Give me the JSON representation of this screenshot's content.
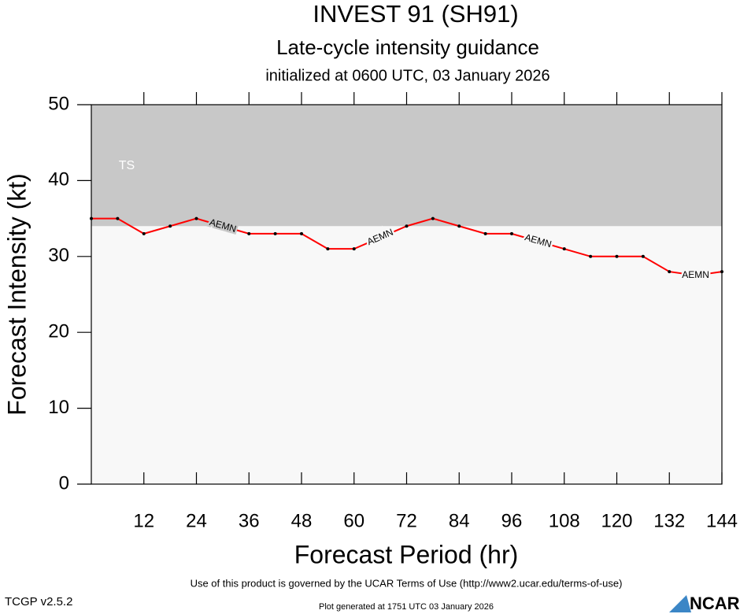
{
  "chart_data": {
    "type": "line",
    "title": "INVEST 91 (SH91)",
    "subtitle": "Late-cycle intensity guidance",
    "initialized": "initialized at 0600 UTC, 03 January 2026",
    "x_label": "Forecast Period (hr)",
    "y_label": "Forecast Intensity (kt)",
    "x": [
      0,
      6,
      12,
      18,
      24,
      30,
      36,
      42,
      48,
      54,
      60,
      66,
      72,
      78,
      84,
      90,
      96,
      102,
      108,
      114,
      120,
      126,
      132,
      138,
      144
    ],
    "series": [
      {
        "name": "AEMN",
        "color": "#ff0000",
        "values": [
          35,
          35,
          33,
          34,
          35,
          34,
          33,
          33,
          33,
          31,
          31,
          32.5,
          34,
          35,
          34,
          33,
          33,
          32,
          31,
          30,
          30,
          30,
          28,
          27.5,
          28
        ]
      }
    ],
    "shading": {
      "label": "TS",
      "from": 34,
      "to": 50,
      "color": "#c8c8c8"
    },
    "xlim": [
      0,
      144
    ],
    "xticks": [
      12,
      24,
      36,
      48,
      60,
      72,
      84,
      96,
      108,
      120,
      132,
      144
    ],
    "ylim": [
      0,
      50
    ],
    "yticks": [
      0,
      10,
      20,
      30,
      40,
      50
    ],
    "footer": "Use of this product is governed by the UCAR Terms of Use (http://www2.ucar.edu/terms-of-use)",
    "version": "TCGP v2.5.2",
    "generated": "Plot generated at 1751 UTC   03 January 2026",
    "logo": "NCAR"
  }
}
